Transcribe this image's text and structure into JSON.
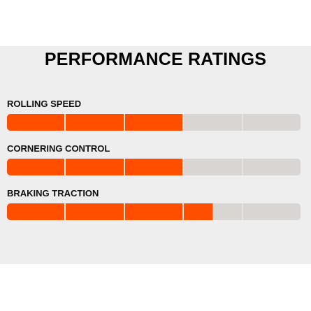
{
  "title": "PERFORMANCE RATINGS",
  "accent_color": "#ff4e00",
  "track_color": "#d9d5d3",
  "segments_total": 5,
  "metrics": [
    {
      "label": "ROLLING SPEED",
      "filled": 3
    },
    {
      "label": "CORNERING CONTROL",
      "filled": 3
    },
    {
      "label": "BRAKING TRACTION",
      "filled": 3.5
    }
  ]
}
